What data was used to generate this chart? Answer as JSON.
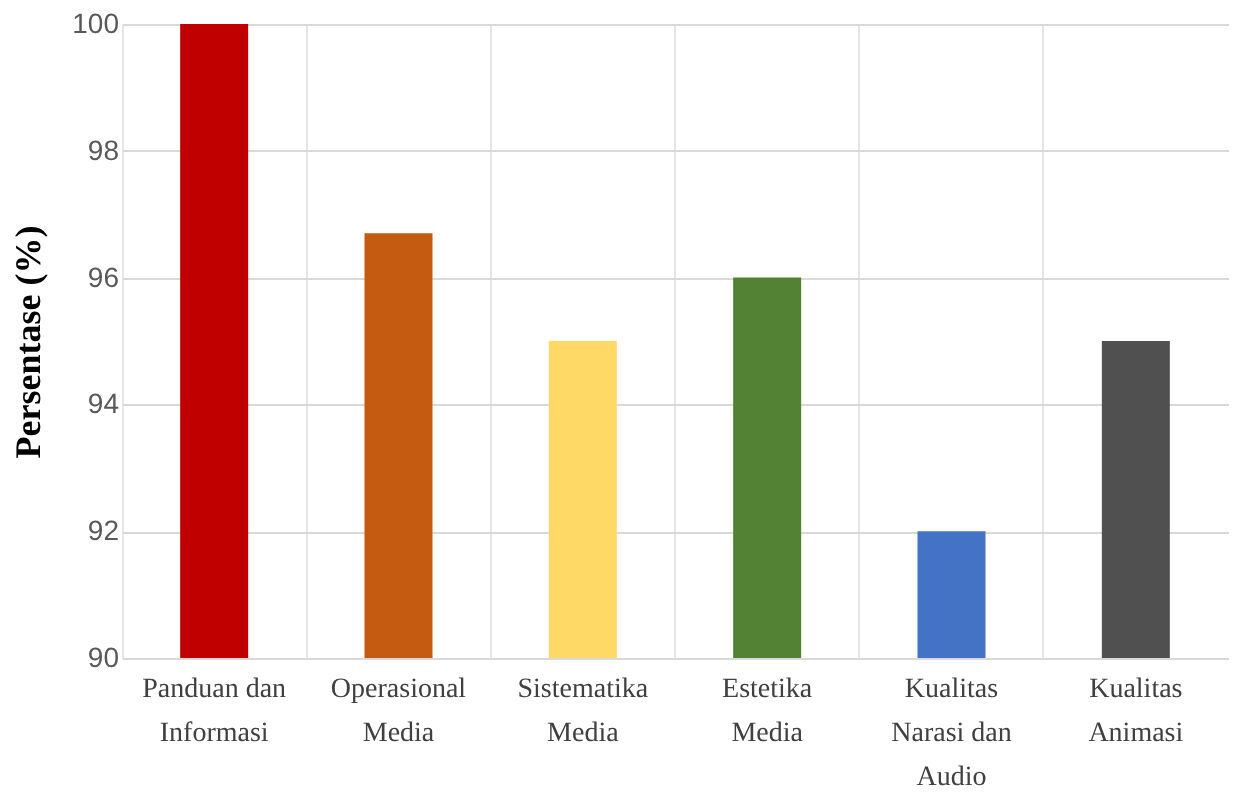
{
  "chart_data": {
    "type": "bar",
    "ylabel": "Persentase (%)",
    "categories": [
      "Panduan dan Informasi",
      "Operasional Media",
      "Sistematika Media",
      "Estetika Media",
      "Kualitas Narasi dan Audio",
      "Kualitas Animasi"
    ],
    "values": [
      100,
      96.7,
      95,
      96,
      92,
      95
    ],
    "colors": [
      "#c00000",
      "#c55a11",
      "#ffd966",
      "#548235",
      "#4472c4",
      "#505050"
    ],
    "ylim": [
      90,
      100
    ],
    "yticks": [
      90,
      92,
      94,
      96,
      98,
      100
    ],
    "grid": true,
    "legend": false
  }
}
